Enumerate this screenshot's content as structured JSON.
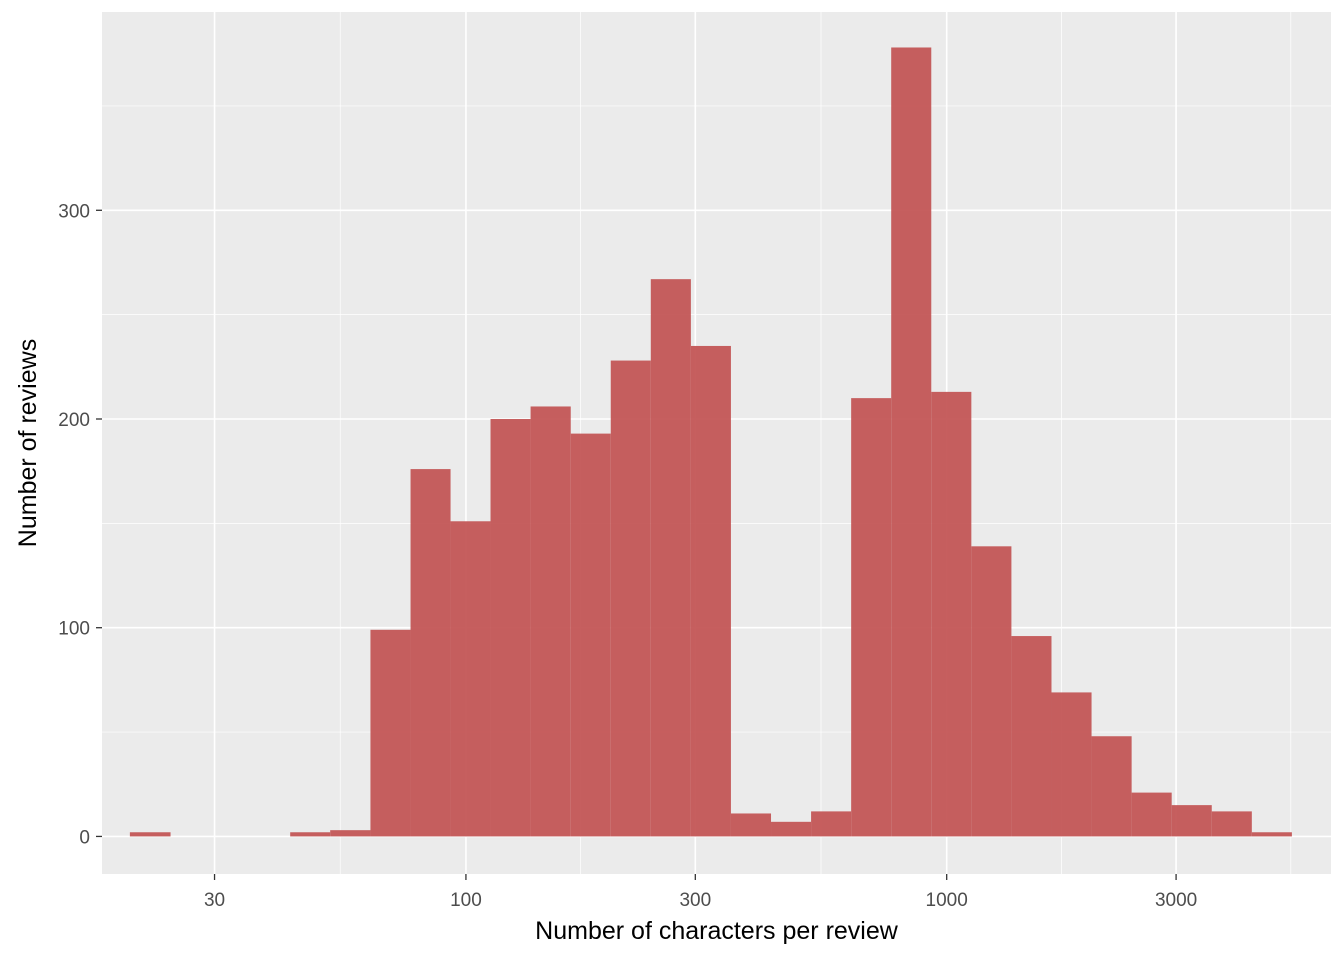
{
  "chart_data": {
    "type": "bar",
    "subtype": "histogram",
    "title": "",
    "xlabel": "Number of characters per review",
    "ylabel": "Number of reviews",
    "x_scale": "log10",
    "xlim": [
      17.5,
      6300
    ],
    "ylim": [
      -18,
      395
    ],
    "x_ticks": [
      30,
      100,
      300,
      1000,
      3000
    ],
    "x_tick_labels": [
      "30",
      "100",
      "300",
      "1000",
      "3000"
    ],
    "y_ticks": [
      0,
      100,
      200,
      300
    ],
    "y_tick_labels": [
      "0",
      "100",
      "200",
      "300"
    ],
    "grid": true,
    "panel_background": "#ebebeb",
    "grid_color": "#ffffff",
    "bar_color": "#c25353",
    "bins": [
      {
        "x0": 20,
        "x1": 24.3,
        "count": 2
      },
      {
        "x0": 24.3,
        "x1": 29.4,
        "count": 0
      },
      {
        "x0": 29.4,
        "x1": 35.6,
        "count": 0
      },
      {
        "x0": 35.6,
        "x1": 43.1,
        "count": 0
      },
      {
        "x0": 43.1,
        "x1": 52.2,
        "count": 2
      },
      {
        "x0": 52.2,
        "x1": 63.3,
        "count": 3
      },
      {
        "x0": 63.3,
        "x1": 76.7,
        "count": 99
      },
      {
        "x0": 76.7,
        "x1": 92.9,
        "count": 176
      },
      {
        "x0": 92.9,
        "x1": 112.5,
        "count": 151
      },
      {
        "x0": 112.5,
        "x1": 136.3,
        "count": 200
      },
      {
        "x0": 136.3,
        "x1": 165.2,
        "count": 206
      },
      {
        "x0": 165.2,
        "x1": 200.1,
        "count": 193
      },
      {
        "x0": 200.1,
        "x1": 242.4,
        "count": 228
      },
      {
        "x0": 242.4,
        "x1": 293.7,
        "count": 267
      },
      {
        "x0": 293.7,
        "x1": 355.8,
        "count": 235
      },
      {
        "x0": 355.8,
        "x1": 431.1,
        "count": 11
      },
      {
        "x0": 431.1,
        "x1": 522.3,
        "count": 7
      },
      {
        "x0": 522.3,
        "x1": 632.8,
        "count": 12
      },
      {
        "x0": 632.8,
        "x1": 766.6,
        "count": 210
      },
      {
        "x0": 766.6,
        "x1": 928.8,
        "count": 378
      },
      {
        "x0": 928.8,
        "x1": 1125.3,
        "count": 213
      },
      {
        "x0": 1125.3,
        "x1": 1363.3,
        "count": 139
      },
      {
        "x0": 1363.3,
        "x1": 1651.8,
        "count": 96
      },
      {
        "x0": 1651.8,
        "x1": 2001.2,
        "count": 69
      },
      {
        "x0": 2001.2,
        "x1": 2424.6,
        "count": 48
      },
      {
        "x0": 2424.6,
        "x1": 2937.5,
        "count": 21
      },
      {
        "x0": 2937.5,
        "x1": 3558.9,
        "count": 15
      },
      {
        "x0": 3558.9,
        "x1": 4311.8,
        "count": 12
      },
      {
        "x0": 4311.8,
        "x1": 5224,
        "count": 2
      }
    ]
  }
}
